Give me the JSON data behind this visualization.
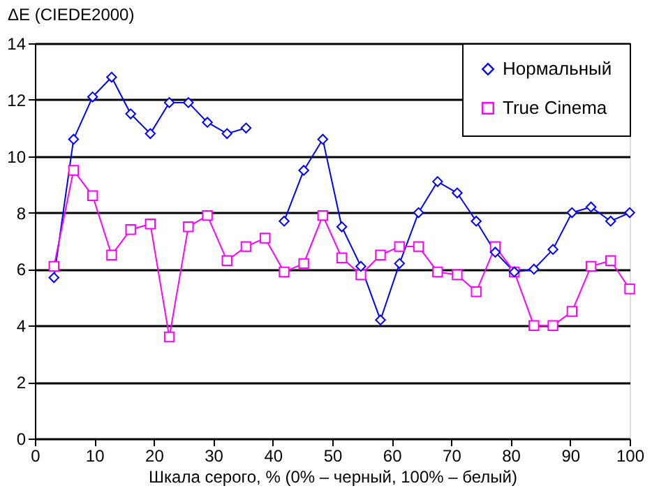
{
  "chart_data": {
    "type": "line",
    "xlabel": "Шкала серого, % (0% – черный, 100% – белый)",
    "ylabel": "ΔE (CIEDE2000)",
    "x": [
      3.2,
      6.5,
      9.7,
      12.9,
      16.1,
      19.4,
      22.6,
      25.8,
      29.0,
      32.3,
      35.5,
      38.7,
      41.9,
      45.2,
      48.4,
      51.6,
      54.8,
      58.1,
      61.3,
      64.5,
      67.7,
      71.0,
      74.2,
      77.4,
      80.6,
      83.9,
      87.1,
      90.3,
      93.5,
      96.8,
      100
    ],
    "series": [
      {
        "name": "Нормальный",
        "color": "#0000ff",
        "marker": "diamond",
        "values": [
          5.7,
          10.6,
          12.1,
          12.8,
          11.5,
          10.8,
          11.9,
          11.9,
          11.2,
          10.8,
          11.0,
          null,
          7.7,
          9.5,
          10.6,
          7.5,
          6.1,
          4.2,
          6.2,
          8.0,
          9.1,
          8.7,
          7.7,
          6.6,
          5.9,
          6.0,
          6.7,
          8.0,
          8.2,
          7.7,
          8.0
        ]
      },
      {
        "name": "True Cinema",
        "color": "#ff00ff",
        "marker": "square",
        "values": [
          6.1,
          9.5,
          8.6,
          6.5,
          7.4,
          7.6,
          3.6,
          7.5,
          7.9,
          6.3,
          6.8,
          7.1,
          5.9,
          6.2,
          7.9,
          6.4,
          5.8,
          6.5,
          6.8,
          6.8,
          5.9,
          5.8,
          5.2,
          6.8,
          5.9,
          4.0,
          4.0,
          4.5,
          6.1,
          6.3,
          5.3
        ]
      }
    ],
    "xlim": [
      0,
      100
    ],
    "xticks": [
      0,
      10,
      20,
      30,
      40,
      50,
      60,
      70,
      80,
      90,
      100
    ],
    "ylim": [
      0,
      14
    ],
    "yticks": [
      0,
      2,
      4,
      6,
      8,
      10,
      12,
      14
    ],
    "grid": "y",
    "legend": "top right"
  }
}
